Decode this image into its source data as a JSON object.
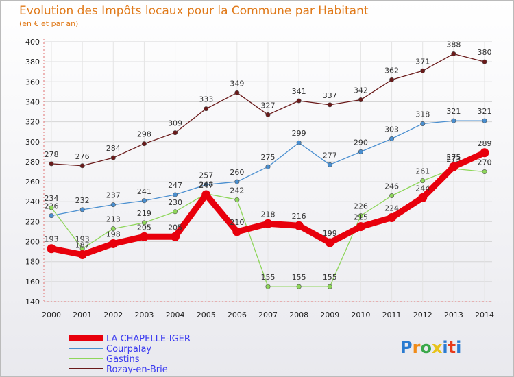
{
  "chart_data": {
    "type": "line",
    "title": "Evolution des Impôts locaux pour la Commune par Habitant",
    "subtitle": "(en € et par an)",
    "xlabel": "",
    "ylabel": "",
    "ylim": [
      140,
      400
    ],
    "yticks": [
      140,
      160,
      180,
      200,
      220,
      240,
      260,
      280,
      300,
      320,
      340,
      360,
      380,
      400
    ],
    "categories": [
      "2000",
      "2001",
      "2002",
      "2003",
      "2004",
      "2005",
      "2006",
      "2007",
      "2008",
      "2009",
      "2010",
      "2011",
      "2012",
      "2013",
      "2014"
    ],
    "grid": true,
    "legend_position": "bottom-left",
    "series": [
      {
        "name": "LA CHAPELLE-IGER",
        "color": "#e8000c",
        "emphasis": true,
        "values": [
          193,
          187,
          198,
          205,
          205,
          247,
          210,
          218,
          216,
          199,
          215,
          224,
          244,
          275,
          289
        ]
      },
      {
        "name": "Courpalay",
        "color": "#4a8fd0",
        "emphasis": false,
        "values": [
          226,
          232,
          237,
          241,
          247,
          257,
          260,
          275,
          299,
          277,
          290,
          303,
          318,
          321,
          321
        ]
      },
      {
        "name": "Gastins",
        "color": "#8ed65a",
        "emphasis": false,
        "values": [
          234,
          193,
          213,
          219,
          230,
          248,
          242,
          155,
          155,
          155,
          226,
          246,
          261,
          273,
          270
        ]
      },
      {
        "name": "Rozay-en-Brie",
        "color": "#6a1a1a",
        "emphasis": false,
        "values": [
          278,
          276,
          284,
          298,
          309,
          333,
          349,
          327,
          341,
          337,
          342,
          362,
          371,
          388,
          380
        ]
      }
    ],
    "legend_label_colors": [
      "#3a3af0",
      "#3a3af0",
      "#3a3af0",
      "#3a3af0"
    ]
  },
  "brand": {
    "text": "Proxiti",
    "letters": [
      "P",
      "r",
      "o",
      "x",
      "i",
      "t",
      "i"
    ],
    "colors": [
      "#2a7bd0",
      "#f08c1a",
      "#3aa84a",
      "#e8c31a",
      "#2a7bd0",
      "#e83a1a",
      "#2a7bd0"
    ]
  }
}
